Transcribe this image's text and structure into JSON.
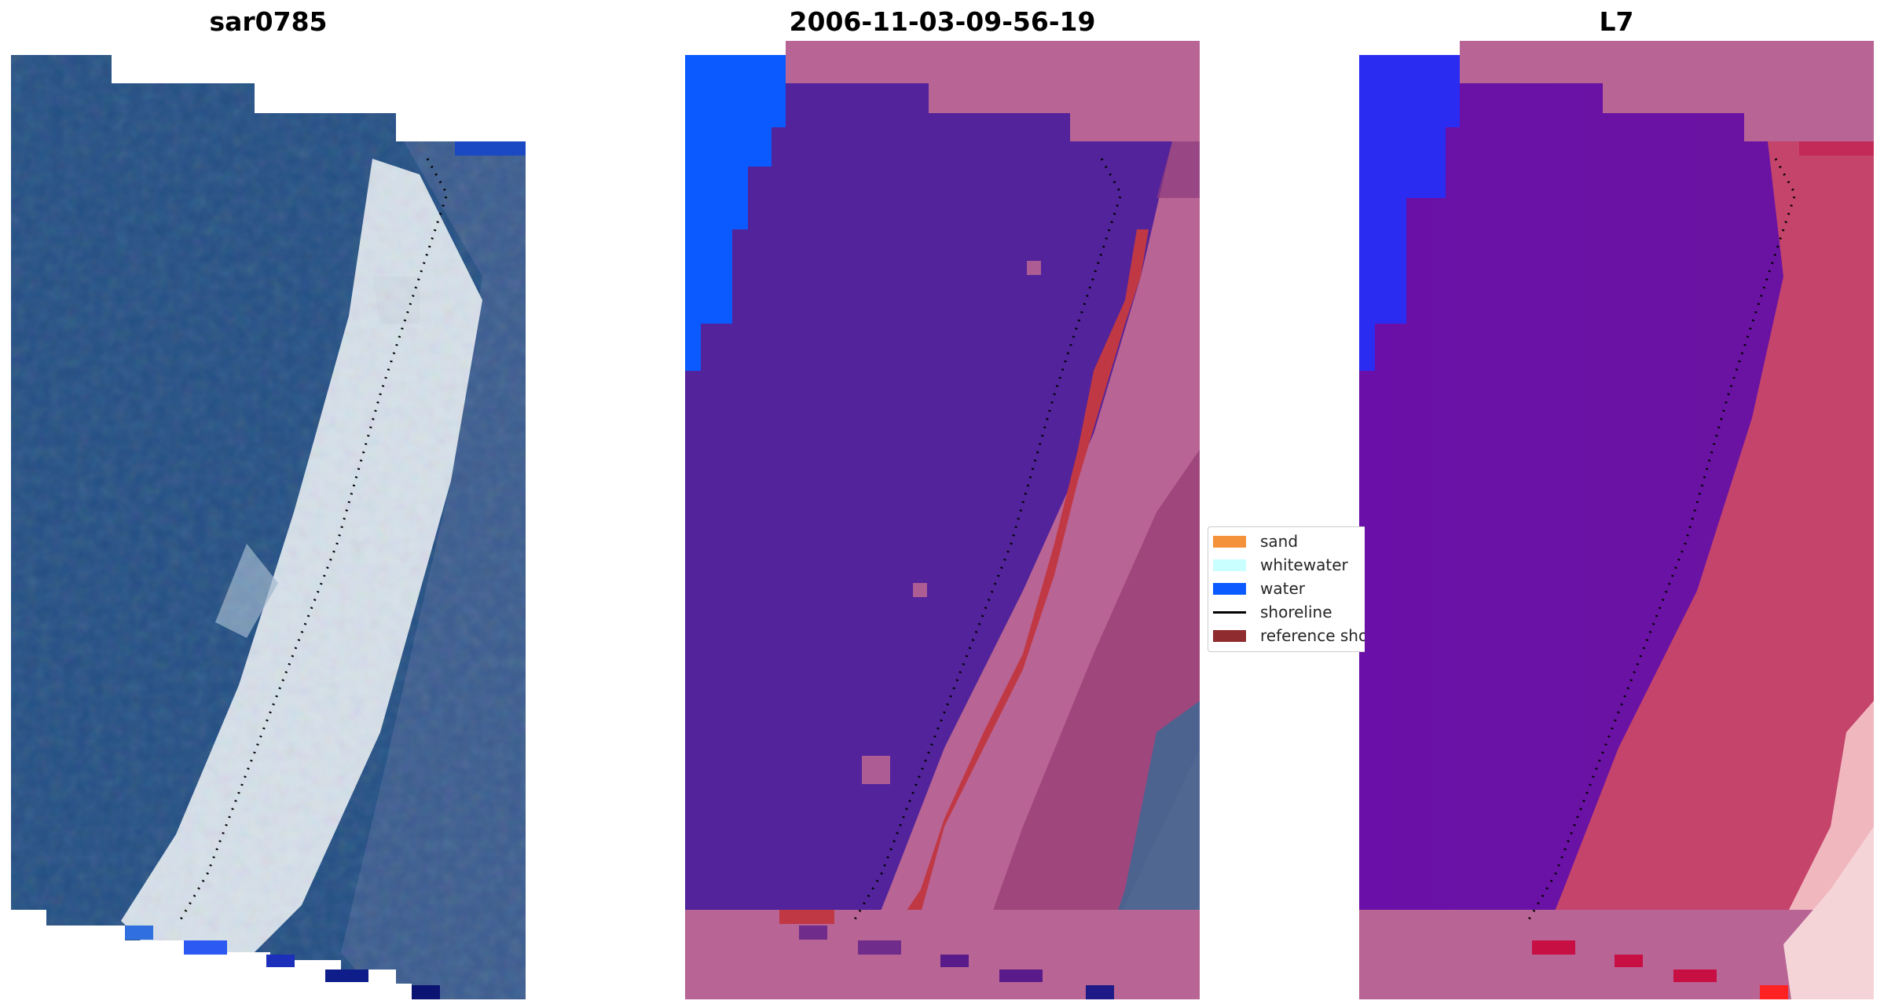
{
  "panels": [
    {
      "title": "sar0785",
      "style": "rgb"
    },
    {
      "title": "2006-11-03-09-56-19",
      "style": "classified"
    },
    {
      "title": "L7",
      "style": "index"
    }
  ],
  "legend": [
    {
      "label": "sand",
      "color": "#f4913b",
      "kind": "patch"
    },
    {
      "label": "whitewater",
      "color": "#c9ffff",
      "kind": "patch"
    },
    {
      "label": "water",
      "color": "#0b5aff",
      "kind": "patch"
    },
    {
      "label": "shoreline",
      "color": "#000000",
      "kind": "line"
    },
    {
      "label": "reference shoreline",
      "color": "#8e2c2f",
      "kind": "patch"
    }
  ],
  "colors": {
    "nodata_rgb": "#ffffff",
    "nodata_mask": "#b86494",
    "deep_water": "#1e4a7e",
    "land_blue": "#3b5e93",
    "surf_white": "#eaf0f5",
    "class_water_dark": "#52239a",
    "class_land_pink": "#b86494",
    "class_ref_red": "#c03844",
    "index_water": "#6a10a8",
    "index_land": "#c4446b"
  }
}
